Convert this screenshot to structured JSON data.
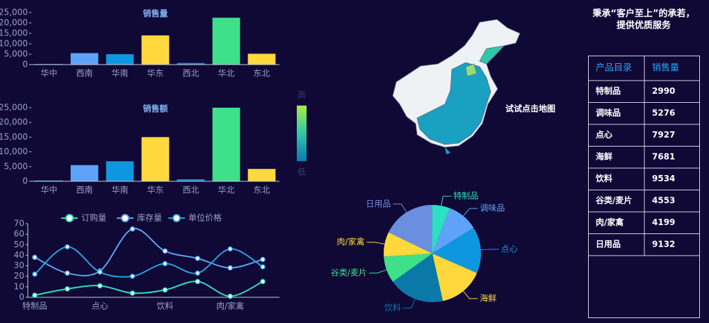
{
  "chart_data": [
    {
      "type": "bar",
      "title": "销售量",
      "categories": [
        "华中",
        "西南",
        "华南",
        "华东",
        "西北",
        "华北",
        "东北"
      ],
      "values": [
        300,
        5500,
        5000,
        14000,
        800,
        22500,
        5200
      ],
      "colors": [
        "#1a88c8",
        "#5ea3f8",
        "#0d97e0",
        "#ffd93b",
        "#1a88c8",
        "#3ee08a",
        "#ffd93b"
      ],
      "ylim": [
        0,
        25000
      ],
      "yticks": [
        0,
        {
          "value": 5000,
          "label": "5,000"
        },
        {
          "value": 10000,
          "label": "10,000"
        },
        {
          "value": 15000,
          "label": "15,000"
        },
        {
          "value": 20000,
          "label": "20,000"
        },
        {
          "value": 25000,
          "label": "25,000"
        }
      ]
    },
    {
      "type": "bar",
      "title": "销售额",
      "categories": [
        "华中",
        "西南",
        "华南",
        "华东",
        "西北",
        "华北",
        "东北"
      ],
      "values": [
        300,
        5500,
        6800,
        15000,
        700,
        25000,
        4200
      ],
      "colors": [
        "#1a88c8",
        "#5ea3f8",
        "#0d97e0",
        "#ffd93b",
        "#1a88c8",
        "#3ee08a",
        "#ffd93b"
      ],
      "ylim": [
        0,
        25000
      ],
      "yticks": [
        0,
        {
          "value": 5000,
          "label": "5,000"
        },
        {
          "value": 10000,
          "label": "10,000"
        },
        {
          "value": 15000,
          "label": "15,000"
        },
        {
          "value": 20000,
          "label": "20,000"
        },
        {
          "value": 25000,
          "label": "25,000"
        }
      ],
      "visual_map": {
        "high": "高",
        "low": "低"
      }
    },
    {
      "type": "line",
      "categories": [
        "特制品",
        null,
        "点心",
        null,
        "饮料",
        null,
        "肉/家禽",
        null
      ],
      "series": [
        {
          "name": "订购量",
          "color": "#2de0c0",
          "values": [
            2,
            8,
            11,
            4,
            7,
            15,
            1,
            15
          ]
        },
        {
          "name": "库存量",
          "color": "#57a6f5",
          "values": [
            38,
            23,
            25,
            65,
            44,
            37,
            28,
            36
          ]
        },
        {
          "name": "单位价格",
          "color": "#2aa0e0",
          "values": [
            22,
            48,
            24,
            20,
            32,
            23,
            46,
            29
          ]
        }
      ],
      "ylim": [
        0,
        70
      ],
      "yticks": [
        0,
        10,
        20,
        30,
        40,
        50,
        60,
        70
      ]
    },
    {
      "type": "map",
      "hint": "试试点击地图"
    },
    {
      "type": "pie",
      "categories": [
        "特制品",
        "调味品",
        "点心",
        "海鲜",
        "饮料",
        "谷类/麦片",
        "肉/家禽",
        "日用品"
      ],
      "values": [
        2990,
        5276,
        7927,
        7681,
        9534,
        4553,
        4199,
        9132
      ],
      "colors": [
        "#2de0c0",
        "#5ea3f8",
        "#0d97e0",
        "#ffd93b",
        "#0a79a8",
        "#3ee08a",
        "#ffd93b",
        "#6a8fe0"
      ]
    }
  ],
  "slogan": [
    "秉承“客户至上”的承若，",
    "提供优质服务"
  ],
  "table": {
    "header": [
      "产品目录",
      "销售量"
    ],
    "rows": [
      [
        "特制品",
        "2990"
      ],
      [
        "调味品",
        "5276"
      ],
      [
        "点心",
        "7927"
      ],
      [
        "海鲜",
        "7681"
      ],
      [
        "饮料",
        "9534"
      ],
      [
        "谷类/麦片",
        "4553"
      ],
      [
        "肉/家禽",
        "4199"
      ],
      [
        "日用品",
        "9132"
      ]
    ]
  }
}
